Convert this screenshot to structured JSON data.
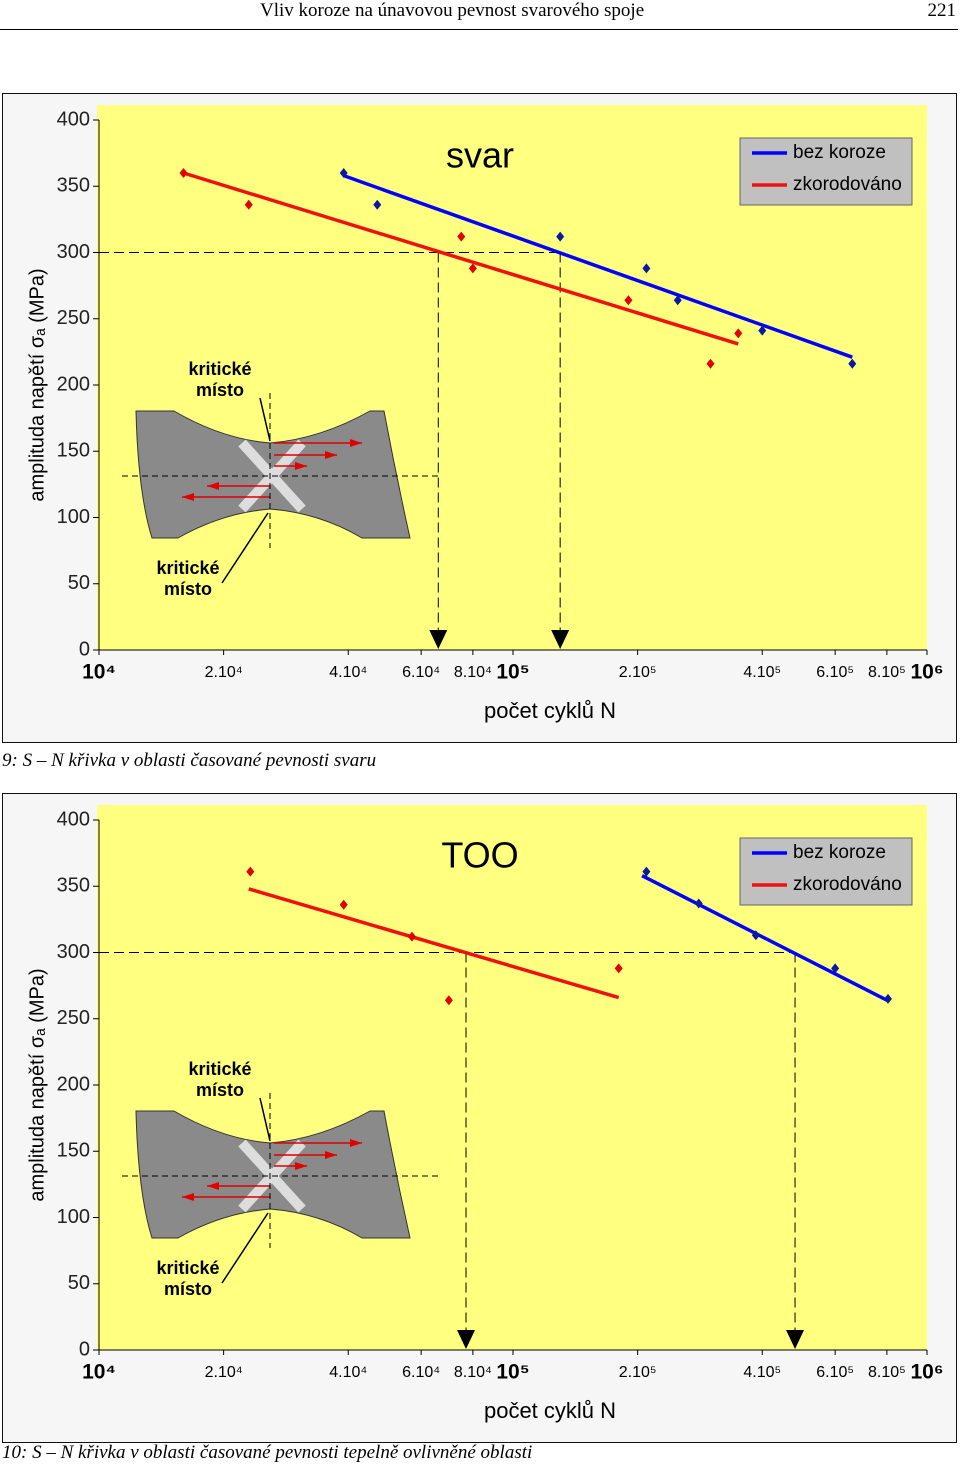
{
  "header": {
    "title": "Vliv koroze na únavovou pevnost svarového spoje",
    "page": "221"
  },
  "chart_data": [
    {
      "type": "scatter",
      "title": "svar",
      "xlabel": "počet cyklů N",
      "ylabel": "amplituda napětí σₐ (MPa)",
      "xscale": "log",
      "xlim": [
        10000,
        1000000
      ],
      "ylim": [
        0,
        400
      ],
      "xticks": [
        {
          "value": 10000,
          "label": "10⁴"
        },
        {
          "value": 20000,
          "label": "2.10⁴"
        },
        {
          "value": 40000,
          "label": "4.10⁴"
        },
        {
          "value": 60000,
          "label": "6.10⁴"
        },
        {
          "value": 80000,
          "label": "8.10⁴"
        },
        {
          "value": 100000,
          "label": "10⁵"
        },
        {
          "value": 200000,
          "label": "2.10⁵"
        },
        {
          "value": 400000,
          "label": "4.10⁵"
        },
        {
          "value": 600000,
          "label": "6.10⁵"
        },
        {
          "value": 800000,
          "label": "8.10⁵"
        },
        {
          "value": 1000000,
          "label": "10⁶"
        }
      ],
      "yticks": [
        0,
        50,
        100,
        150,
        200,
        250,
        300,
        350,
        400
      ],
      "legend": "top-right",
      "series": [
        {
          "name": "bez koroze",
          "color": "#0a1aa0",
          "line_color": "#0000ff",
          "x": [
            39000,
            47000,
            130000,
            210000,
            250000,
            400000,
            660000
          ],
          "values": [
            360,
            336,
            312,
            288,
            264,
            241,
            216
          ],
          "fit": {
            "x": [
              39000,
              660000
            ],
            "y": [
              358,
              221
            ]
          }
        },
        {
          "name": "zkorodováno",
          "color": "#e00000",
          "line_color": "#ee1111",
          "x": [
            16000,
            23000,
            75000,
            80000,
            190000,
            300000,
            350000
          ],
          "values": [
            360,
            336,
            312,
            288,
            264,
            216,
            239
          ],
          "fit": {
            "x": [
              16000,
              350000
            ],
            "y": [
              360,
              231
            ]
          }
        }
      ],
      "guides": {
        "y": 300,
        "x": [
          66000,
          130000
        ]
      },
      "annotations": [
        [
          "kritické",
          "místo"
        ],
        [
          "kritické",
          "místo"
        ]
      ]
    },
    {
      "type": "scatter",
      "title": "TOO",
      "xlabel": "počet cyklů N",
      "ylabel": "amplituda napětí σₐ (MPa)",
      "xscale": "log",
      "xlim": [
        10000,
        1000000
      ],
      "ylim": [
        0,
        400
      ],
      "xticks": [
        {
          "value": 10000,
          "label": "10⁴"
        },
        {
          "value": 20000,
          "label": "2.10⁴"
        },
        {
          "value": 40000,
          "label": "4.10⁴"
        },
        {
          "value": 60000,
          "label": "6.10⁴"
        },
        {
          "value": 80000,
          "label": "8.10⁴"
        },
        {
          "value": 100000,
          "label": "10⁵"
        },
        {
          "value": 200000,
          "label": "2.10⁵"
        },
        {
          "value": 400000,
          "label": "4.10⁵"
        },
        {
          "value": 600000,
          "label": "6.10⁵"
        },
        {
          "value": 800000,
          "label": "8.10⁵"
        },
        {
          "value": 1000000,
          "label": "10⁶"
        }
      ],
      "yticks": [
        0,
        50,
        100,
        150,
        200,
        250,
        300,
        350,
        400
      ],
      "legend": "top-right",
      "series": [
        {
          "name": "bez koroze",
          "color": "#0a1aa0",
          "line_color": "#0000ff",
          "x": [
            210000,
            281000,
            386000,
            600000,
            805000
          ],
          "values": [
            361,
            337,
            313,
            288,
            265
          ],
          "fit": {
            "x": [
              205000,
              800000
            ],
            "y": [
              358,
              264
            ]
          }
        },
        {
          "name": "zkorodováno",
          "color": "#e00000",
          "line_color": "#ee1111",
          "x": [
            23200,
            39000,
            57000,
            70000,
            180000
          ],
          "values": [
            361,
            336,
            312,
            264,
            288
          ],
          "fit": {
            "x": [
              23000,
              180000
            ],
            "y": [
              348,
              266
            ]
          }
        }
      ],
      "guides": {
        "y": 300,
        "x": [
          77000,
          480000
        ]
      },
      "annotations": [
        [
          "kritické",
          "místo"
        ],
        [
          "kritické",
          "místo"
        ]
      ]
    }
  ],
  "captions": [
    "9: S – N křivka v oblasti časované pevnosti svaru",
    "10: S – N křivka v oblasti časované pevnosti tepelně ovlivněné oblasti"
  ]
}
